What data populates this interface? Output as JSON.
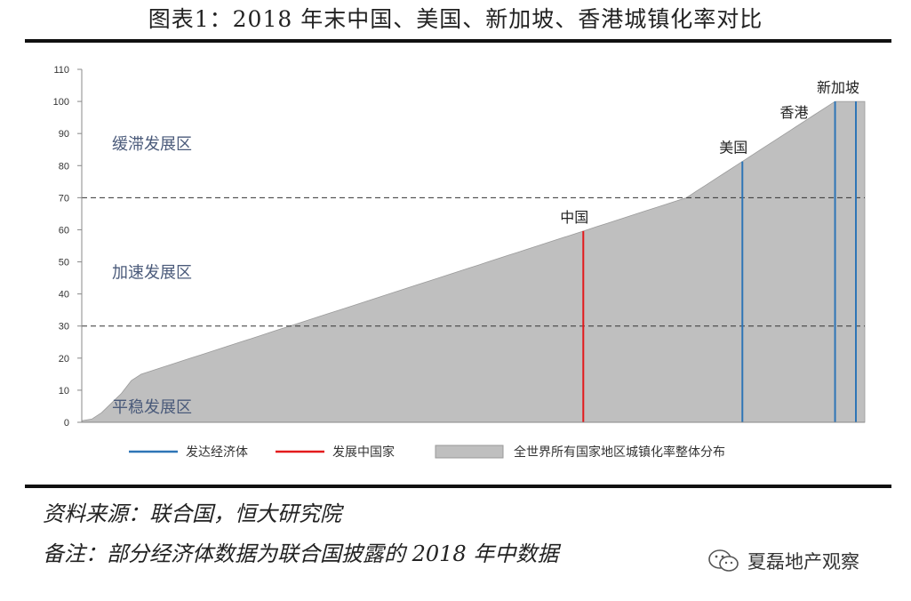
{
  "title": "图表1：2018 年末中国、美国、新加坡、香港城镇化率对比",
  "chart_data": {
    "type": "area",
    "ylim": [
      0,
      110
    ],
    "yticks": [
      "0",
      "10",
      "20",
      "30",
      "40",
      "50",
      "60",
      "70",
      "80",
      "90",
      "100",
      "110"
    ],
    "grid": false,
    "legend_position": "bottom",
    "area_series": {
      "name": "全世界所有国家地区城镇化率整体分布",
      "color": "#bfbfbf",
      "values": [
        0.5,
        1,
        3,
        6,
        9,
        13,
        15,
        16,
        17,
        18,
        19,
        20,
        21,
        22,
        23,
        24,
        25,
        26,
        27,
        28,
        29,
        30,
        31,
        32,
        33,
        34,
        35,
        36,
        37,
        38,
        39,
        40,
        41,
        42,
        43,
        44,
        45,
        46,
        47,
        48,
        49,
        50,
        51,
        52,
        53,
        54,
        55,
        56,
        57,
        58,
        59,
        60,
        61,
        62,
        63,
        64,
        65,
        66,
        67,
        68,
        69,
        70,
        72,
        74,
        76,
        78,
        80,
        82,
        84,
        86,
        88,
        90,
        92,
        94,
        96,
        98,
        100,
        100,
        100,
        100
      ]
    },
    "highlights": [
      {
        "name": "中国",
        "value": 59.6,
        "category": "发展中国家",
        "color": "#e31a1c"
      },
      {
        "name": "美国",
        "value": 81.3,
        "category": "发达经济体",
        "color": "#2e75b6"
      },
      {
        "name": "香港",
        "value": 100,
        "category": "发达经济体",
        "color": "#2e75b6"
      },
      {
        "name": "新加坡",
        "value": 100,
        "category": "发达经济体",
        "color": "#2e75b6"
      }
    ],
    "thresholds": [
      70,
      30
    ],
    "zones": [
      {
        "label": "缓滞发展区",
        "range": [
          70,
          110
        ]
      },
      {
        "label": "加速发展区",
        "range": [
          30,
          70
        ]
      },
      {
        "label": "平稳发展区",
        "range": [
          0,
          30
        ]
      }
    ],
    "legend": [
      {
        "label": "发达经济体",
        "color": "#2e75b6",
        "kind": "line"
      },
      {
        "label": "发展中国家",
        "color": "#e31a1c",
        "kind": "line"
      },
      {
        "label": "全世界所有国家地区城镇化率整体分布",
        "color": "#bfbfbf",
        "kind": "box"
      }
    ]
  },
  "notes": {
    "source": "资料来源：联合国，恒大研究院",
    "remark": "备注：部分经济体数据为联合国披露的 2018 年中数据"
  },
  "watermark": {
    "icon": "wechat-icon",
    "text": "夏磊地产观察"
  }
}
